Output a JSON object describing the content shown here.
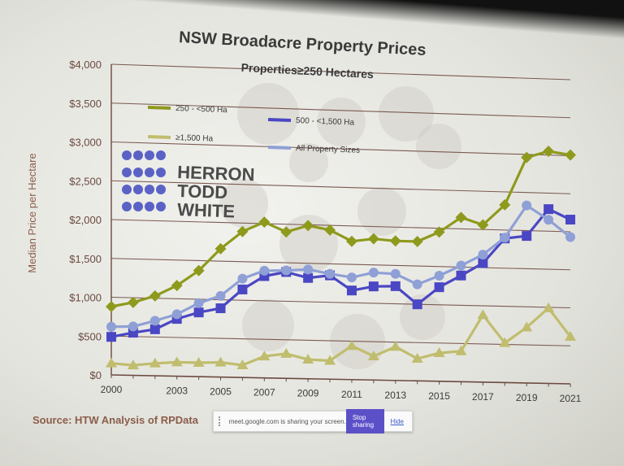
{
  "chart_data": {
    "type": "line",
    "title": "NSW Broadacre Property Prices",
    "subtitle": "Properties≥250 Hectares",
    "ylabel": "Median Price per Hectare",
    "xlabel": "",
    "x": [
      2000,
      2001,
      2002,
      2003,
      2004,
      2005,
      2006,
      2007,
      2008,
      2009,
      2010,
      2011,
      2012,
      2013,
      2014,
      2015,
      2016,
      2017,
      2018,
      2019,
      2020,
      2021
    ],
    "x_ticks": [
      "2000",
      "2003",
      "2005",
      "2007",
      "2009",
      "2011",
      "2013",
      "2015",
      "2017",
      "2019",
      "2021"
    ],
    "y_ticks": [
      "$0",
      "$500",
      "$1,000",
      "$1,500",
      "$2,000",
      "$2,500",
      "$3,000",
      "$3,500",
      "$4,000"
    ],
    "ylim": [
      0,
      4000
    ],
    "grid": true,
    "series": [
      {
        "name": "250 - <500 Ha",
        "color": "#8e9a1c",
        "marker": "diamond",
        "values": [
          880,
          940,
          1030,
          1170,
          1370,
          1660,
          1890,
          2020,
          1900,
          1990,
          1940,
          1800,
          1840,
          1820,
          1820,
          1950,
          2150,
          2060,
          2330,
          2960,
          3050,
          3010
        ]
      },
      {
        "name": "500 - <1,500 Ha",
        "color": "#4a47c4",
        "marker": "square",
        "values": [
          490,
          550,
          600,
          740,
          830,
          890,
          1140,
          1320,
          1380,
          1310,
          1350,
          1160,
          1220,
          1230,
          1000,
          1230,
          1390,
          1560,
          1890,
          1930,
          2290,
          2160
        ]
      },
      {
        "name": "≥1,500 Ha",
        "color": "#c0bd6e",
        "marker": "triangle",
        "values": [
          150,
          130,
          160,
          180,
          180,
          190,
          160,
          280,
          320,
          250,
          240,
          440,
          310,
          440,
          290,
          370,
          400,
          880,
          520,
          730,
          990,
          620
        ]
      },
      {
        "name": "All Property Sizes",
        "color": "#8fa0d6",
        "marker": "circle",
        "values": [
          620,
          630,
          710,
          800,
          950,
          1050,
          1280,
          1390,
          1400,
          1420,
          1370,
          1330,
          1400,
          1390,
          1260,
          1380,
          1520,
          1670,
          1900,
          2330,
          2150,
          1930
        ]
      }
    ]
  },
  "logo": {
    "line1": "HERRON",
    "line2": "TODD",
    "line3": "WHITE"
  },
  "source": "Source: HTW Analysis of RPData",
  "share_bar": {
    "message": "meet.google.com is sharing your screen.",
    "stop_label": "Stop sharing",
    "hide_label": "Hide"
  }
}
